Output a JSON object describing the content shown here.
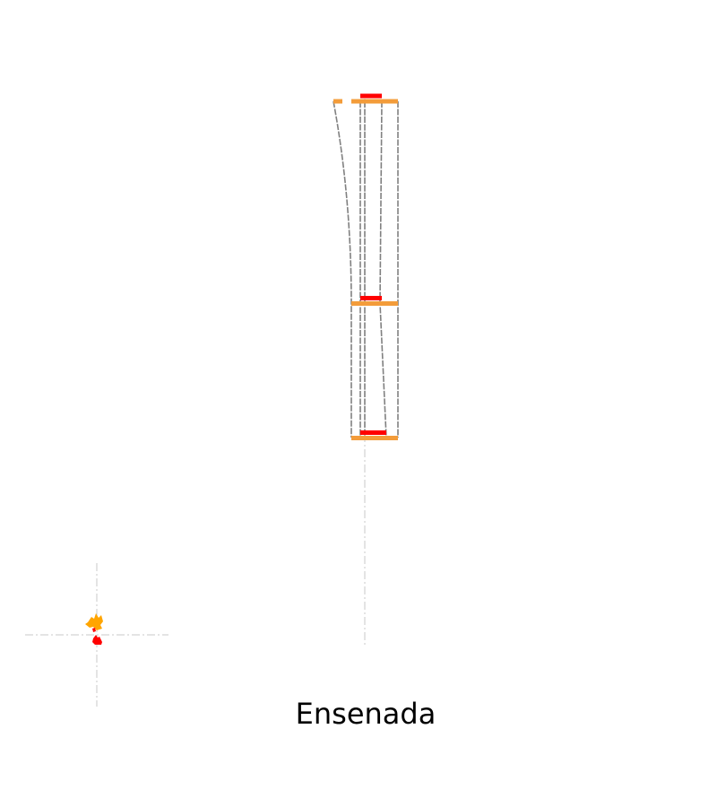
{
  "diagram": {
    "caption": "Ensenada",
    "colors": {
      "background": "#ffffff",
      "outline": "#808080",
      "guide": "#d3d3d3",
      "level_bar": "#f39c3a",
      "cap": "#ff0000",
      "marker_orange": "#ffa500",
      "marker_red": "#ff0000",
      "caption": "#000000"
    }
  }
}
